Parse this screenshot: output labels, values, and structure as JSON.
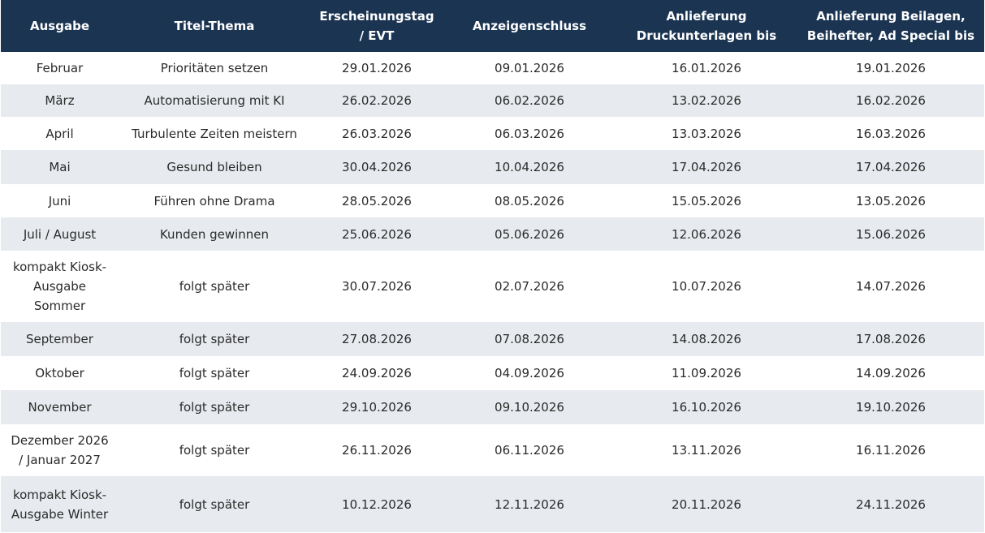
{
  "table": {
    "headers": [
      "Ausgabe",
      "Titel-Thema",
      "Erscheinungstag / EVT",
      "Anzeigenschluss",
      "Anlieferung Druckunterlagen bis",
      "Anlieferung Beilagen, Beihefter, Ad Special bis"
    ],
    "rows": [
      [
        "Februar",
        "Prioritäten setzen",
        "29.01.2026",
        "09.01.2026",
        "16.01.2026",
        "19.01.2026"
      ],
      [
        "März",
        "Automatisierung mit KI",
        "26.02.2026",
        "06.02.2026",
        "13.02.2026",
        "16.02.2026"
      ],
      [
        "April",
        "Turbulente Zeiten meistern",
        "26.03.2026",
        "06.03.2026",
        "13.03.2026",
        "16.03.2026"
      ],
      [
        "Mai",
        "Gesund bleiben",
        "30.04.2026",
        "10.04.2026",
        "17.04.2026",
        "17.04.2026"
      ],
      [
        "Juni",
        "Führen ohne Drama",
        "28.05.2026",
        "08.05.2026",
        "15.05.2026",
        "13.05.2026"
      ],
      [
        "Juli / August",
        "Kunden gewinnen",
        "25.06.2026",
        "05.06.2026",
        "12.06.2026",
        "15.06.2026"
      ],
      [
        "kompakt Kiosk-Ausgabe Sommer",
        "folgt später",
        "30.07.2026",
        "02.07.2026",
        "10.07.2026",
        "14.07.2026"
      ],
      [
        "September",
        "folgt später",
        "27.08.2026",
        "07.08.2026",
        "14.08.2026",
        "17.08.2026"
      ],
      [
        "Oktober",
        "folgt später",
        "24.09.2026",
        "04.09.2026",
        "11.09.2026",
        "14.09.2026"
      ],
      [
        "November",
        "folgt später",
        "29.10.2026",
        "09.10.2026",
        "16.10.2026",
        "19.10.2026"
      ],
      [
        "Dezember 2026 / Januar 2027",
        "folgt später",
        "26.11.2026",
        "06.11.2026",
        "13.11.2026",
        "16.11.2026"
      ],
      [
        "kompakt Kiosk-Ausgabe Winter",
        "folgt später",
        "10.12.2026",
        "12.11.2026",
        "20.11.2026",
        "24.11.2026"
      ]
    ]
  }
}
